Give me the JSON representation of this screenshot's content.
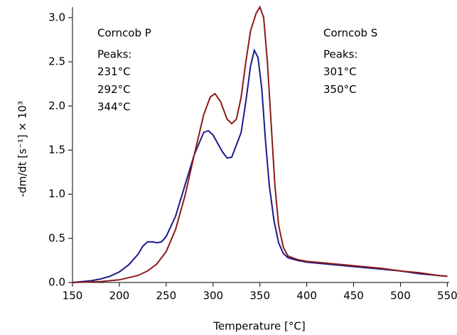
{
  "chart_data": {
    "type": "line",
    "xlabel": "Temperature  [°C]",
    "ylabel": "-dm/dt  [s⁻¹]  × 10³",
    "xlim": [
      150,
      552
    ],
    "ylim": [
      0,
      3.12
    ],
    "xticks": [
      150,
      200,
      250,
      300,
      350,
      400,
      450,
      500,
      550
    ],
    "yticks": [
      {
        "value": 0,
        "label": "0.0"
      },
      {
        "value": 0.5,
        "label": "0.5"
      },
      {
        "value": 1,
        "label": "1.0"
      },
      {
        "value": 1.5,
        "label": "1.5"
      },
      {
        "value": 2,
        "label": "2.0"
      },
      {
        "value": 2.5,
        "label": "2.5"
      },
      {
        "value": 3,
        "label": "3.0"
      }
    ],
    "grid": false,
    "series": [
      {
        "name": "Corncob P",
        "color": "#1a1a8c",
        "annotation": [
          "Peaks:",
          "231°C",
          "292°C",
          "344°C"
        ],
        "x": [
          150,
          160,
          170,
          180,
          190,
          200,
          210,
          220,
          225,
          230,
          235,
          240,
          245,
          250,
          260,
          270,
          280,
          290,
          295,
          300,
          310,
          315,
          320,
          330,
          335,
          340,
          344,
          348,
          352,
          356,
          360,
          365,
          370,
          375,
          380,
          390,
          400,
          420,
          450,
          480,
          500,
          520,
          540,
          550
        ],
        "values": [
          0,
          0.01,
          0.02,
          0.04,
          0.07,
          0.12,
          0.2,
          0.32,
          0.41,
          0.46,
          0.46,
          0.45,
          0.46,
          0.52,
          0.75,
          1.1,
          1.45,
          1.7,
          1.72,
          1.67,
          1.48,
          1.41,
          1.42,
          1.7,
          2.05,
          2.45,
          2.63,
          2.55,
          2.2,
          1.6,
          1.1,
          0.7,
          0.45,
          0.33,
          0.28,
          0.25,
          0.23,
          0.21,
          0.18,
          0.15,
          0.13,
          0.1,
          0.08,
          0.07
        ]
      },
      {
        "name": "Corncob S",
        "color": "#8b1a1a",
        "annotation": [
          "Peaks:",
          "301°C",
          "350°C"
        ],
        "x": [
          150,
          180,
          200,
          220,
          230,
          240,
          250,
          260,
          270,
          280,
          290,
          297,
          302,
          308,
          315,
          320,
          325,
          330,
          335,
          340,
          346,
          350,
          354,
          358,
          362,
          366,
          370,
          375,
          380,
          390,
          400,
          420,
          450,
          480,
          500,
          520,
          540,
          550
        ],
        "values": [
          0,
          0.01,
          0.03,
          0.08,
          0.13,
          0.21,
          0.35,
          0.6,
          0.98,
          1.45,
          1.9,
          2.1,
          2.14,
          2.05,
          1.85,
          1.8,
          1.85,
          2.1,
          2.5,
          2.85,
          3.05,
          3.12,
          3.0,
          2.5,
          1.8,
          1.1,
          0.65,
          0.4,
          0.3,
          0.26,
          0.24,
          0.22,
          0.19,
          0.16,
          0.13,
          0.11,
          0.08,
          0.07
        ]
      }
    ]
  }
}
